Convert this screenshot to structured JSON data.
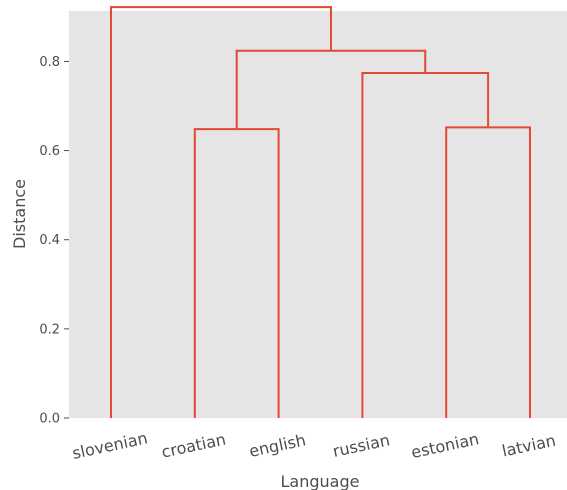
{
  "chart_data": {
    "type": "dendrogram",
    "xlabel": "Language",
    "ylabel": "Distance",
    "ylim": [
      0,
      0.94
    ],
    "yticks": [
      0.0,
      0.2,
      0.4,
      0.6,
      0.8
    ],
    "ytick_labels": [
      "0.0",
      "0.2",
      "0.4",
      "0.6",
      "0.8"
    ],
    "grid": false,
    "leaves": [
      "slovenian",
      "croatian",
      "english",
      "russian",
      "estonian",
      "latvian"
    ],
    "merges": [
      {
        "left": "croatian",
        "right": "english",
        "distance": 0.648
      },
      {
        "left": "estonian",
        "right": "latvian",
        "distance": 0.652
      },
      {
        "left": "russian",
        "right": "estonian+latvian",
        "distance": 0.774
      },
      {
        "left": "croatian+english",
        "right": "russian+estonian+latvian",
        "distance": 0.824
      },
      {
        "left": "slovenian",
        "right": "croatian+english+russian+estonian+latvian",
        "distance": 0.922
      }
    ],
    "colors": {
      "link": "#e24a33",
      "plot_background": "#e5e5e5",
      "text": "#4d4d4d"
    }
  }
}
